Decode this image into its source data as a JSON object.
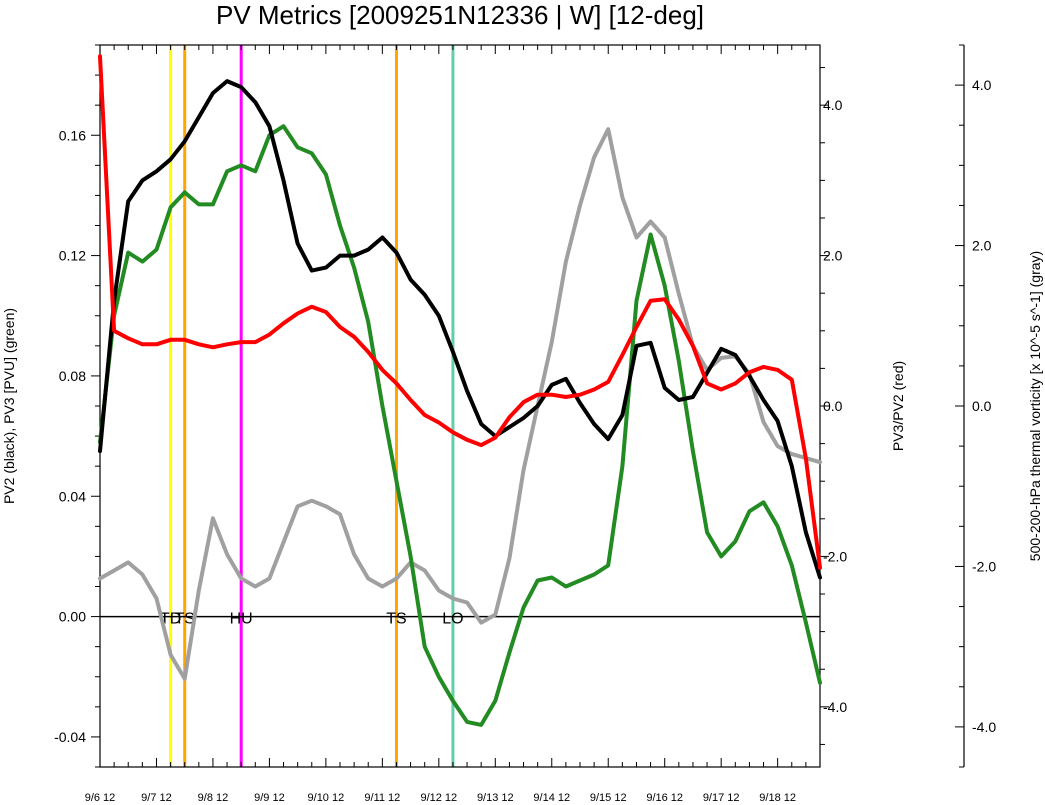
{
  "chart_data": {
    "type": "line",
    "title": "PV Metrics [2009251N12336 | W] [12-deg]",
    "y_left_label": "PV2 (black), PV3 [PVU] (green)",
    "y_mid_label": "PV3/PV2 (red)",
    "y_right_label": "500-200-hPa thermal vorticity [x 10^-5 s^-1] (gray)",
    "x_range": [
      0,
      12.75
    ],
    "x_tick_labels": [
      "9/6 12",
      "9/7 12",
      "9/8 12",
      "9/9 12",
      "9/10 12",
      "9/11 12",
      "9/12 12",
      "9/13 12",
      "9/14 12",
      "9/15 12",
      "9/16 12",
      "9/17 12",
      "9/18 12"
    ],
    "left_axis": {
      "range": [
        -0.05,
        0.19
      ],
      "ticks": [
        -0.04,
        0.0,
        0.04,
        0.08,
        0.12,
        0.16
      ],
      "tick_labels": [
        "-0.04",
        "0.00",
        "0.04",
        "0.08",
        "0.12",
        "0.16"
      ]
    },
    "mid_axis": {
      "range": [
        -4.8,
        4.8
      ],
      "ticks": [
        -4.0,
        -2.0,
        0.0,
        2.0,
        4.0
      ],
      "tick_labels": [
        "-4.0",
        "-2.0",
        "0.0",
        "2.0",
        "4.0"
      ]
    },
    "right_axis": {
      "range": [
        -4.5,
        4.5
      ],
      "ticks": [
        -4.0,
        -2.0,
        0.0,
        2.0,
        4.0
      ],
      "tick_labels": [
        "-4.0",
        "-2.0",
        "0.0",
        "2.0",
        "4.0"
      ]
    },
    "zero_line": 0.0,
    "stage_markers": [
      {
        "x": 1.25,
        "color": "#ffff00",
        "label": "TD"
      },
      {
        "x": 1.5,
        "color": "#ffa500",
        "label": "TS"
      },
      {
        "x": 2.5,
        "color": "#ff00ff",
        "label": "HU"
      },
      {
        "x": 5.25,
        "color": "#ffa500",
        "label": "TS"
      },
      {
        "x": 6.25,
        "color": "#66cdaa",
        "label": "LO"
      }
    ],
    "series": [
      {
        "axis": "right",
        "color": "#a0a0a0",
        "x": [
          0,
          0.25,
          0.5,
          0.75,
          1.0,
          1.25,
          1.5,
          1.75,
          2.0,
          2.25,
          2.5,
          2.75,
          3.0,
          3.25,
          3.5,
          3.75,
          4.0,
          4.25,
          4.5,
          4.75,
          5.0,
          5.25,
          5.5,
          5.75,
          6.0,
          6.25,
          6.5,
          6.75,
          7.0,
          7.25,
          7.5,
          7.75,
          8.0,
          8.25,
          8.5,
          8.75,
          9.0,
          9.25,
          9.5,
          9.75,
          10.0,
          10.25,
          10.5,
          10.75,
          11.0,
          11.25,
          11.5,
          11.75,
          12.0,
          12.25,
          12.5,
          12.75
        ],
        "values": [
          -2.15,
          -2.05,
          -1.95,
          -2.1,
          -2.4,
          -3.1,
          -3.4,
          -2.3,
          -1.4,
          -1.85,
          -2.15,
          -2.25,
          -2.15,
          -1.7,
          -1.25,
          -1.18,
          -1.25,
          -1.35,
          -1.85,
          -2.15,
          -2.25,
          -2.15,
          -1.95,
          -2.05,
          -2.3,
          -2.4,
          -2.45,
          -2.7,
          -2.6,
          -1.9,
          -0.8,
          0.0,
          0.8,
          1.8,
          2.5,
          3.1,
          3.45,
          2.6,
          2.1,
          2.3,
          2.1,
          1.4,
          0.75,
          0.45,
          0.6,
          0.62,
          0.4,
          -0.2,
          -0.5,
          -0.6,
          -0.65,
          -0.7
        ]
      },
      {
        "axis": "left",
        "color": "#228b22",
        "x": [
          0,
          0.25,
          0.5,
          0.75,
          1.0,
          1.25,
          1.5,
          1.75,
          2.0,
          2.25,
          2.5,
          2.75,
          3.0,
          3.25,
          3.5,
          3.75,
          4.0,
          4.25,
          4.5,
          4.75,
          5.0,
          5.25,
          5.5,
          5.75,
          6.0,
          6.25,
          6.5,
          6.75,
          7.0,
          7.25,
          7.5,
          7.75,
          8.0,
          8.25,
          8.5,
          8.75,
          9.0,
          9.25,
          9.5,
          9.75,
          10.0,
          10.25,
          10.5,
          10.75,
          11.0,
          11.25,
          11.5,
          11.75,
          12.0,
          12.25,
          12.5,
          12.75
        ],
        "values": [
          0.058,
          0.1,
          0.121,
          0.118,
          0.122,
          0.136,
          0.141,
          0.137,
          0.137,
          0.148,
          0.15,
          0.148,
          0.16,
          0.163,
          0.156,
          0.154,
          0.147,
          0.13,
          0.116,
          0.098,
          0.07,
          0.045,
          0.02,
          -0.01,
          -0.02,
          -0.028,
          -0.035,
          -0.036,
          -0.028,
          -0.012,
          0.003,
          0.012,
          0.013,
          0.01,
          0.012,
          0.014,
          0.017,
          0.05,
          0.105,
          0.127,
          0.11,
          0.085,
          0.055,
          0.028,
          0.02,
          0.025,
          0.035,
          0.038,
          0.03,
          0.017,
          -0.002,
          -0.022
        ]
      },
      {
        "axis": "left",
        "color": "#000000",
        "x": [
          0,
          0.25,
          0.5,
          0.75,
          1.0,
          1.25,
          1.5,
          1.75,
          2.0,
          2.25,
          2.5,
          2.75,
          3.0,
          3.25,
          3.5,
          3.75,
          4.0,
          4.25,
          4.5,
          4.75,
          5.0,
          5.25,
          5.5,
          5.75,
          6.0,
          6.25,
          6.5,
          6.75,
          7.0,
          7.25,
          7.5,
          7.75,
          8.0,
          8.25,
          8.5,
          8.75,
          9.0,
          9.25,
          9.5,
          9.75,
          10.0,
          10.25,
          10.5,
          10.75,
          11.0,
          11.25,
          11.5,
          11.75,
          12.0,
          12.25,
          12.5,
          12.75
        ],
        "values": [
          0.055,
          0.105,
          0.138,
          0.145,
          0.148,
          0.152,
          0.158,
          0.166,
          0.174,
          0.178,
          0.176,
          0.171,
          0.163,
          0.145,
          0.124,
          0.115,
          0.116,
          0.12,
          0.12,
          0.122,
          0.126,
          0.121,
          0.112,
          0.107,
          0.1,
          0.088,
          0.075,
          0.064,
          0.06,
          0.063,
          0.066,
          0.07,
          0.077,
          0.079,
          0.071,
          0.064,
          0.059,
          0.067,
          0.09,
          0.091,
          0.076,
          0.072,
          0.073,
          0.081,
          0.089,
          0.087,
          0.08,
          0.072,
          0.065,
          0.05,
          0.028,
          0.013
        ]
      },
      {
        "axis": "mid",
        "color": "#ff0000",
        "x": [
          0,
          0.25,
          0.5,
          0.75,
          1.0,
          1.25,
          1.5,
          1.75,
          2.0,
          2.25,
          2.5,
          2.75,
          3.0,
          3.25,
          3.5,
          3.75,
          4.0,
          4.25,
          4.5,
          4.75,
          5.0,
          5.25,
          5.5,
          5.75,
          6.0,
          6.25,
          6.5,
          6.75,
          7.0,
          7.25,
          7.5,
          7.75,
          8.0,
          8.25,
          8.5,
          8.75,
          9.0,
          9.25,
          9.5,
          9.75,
          10.0,
          10.25,
          10.5,
          10.75,
          11.0,
          11.25,
          11.5,
          11.75,
          12.0,
          12.25,
          12.5,
          12.75
        ],
        "values": [
          4.65,
          1.0,
          0.9,
          0.82,
          0.82,
          0.88,
          0.88,
          0.82,
          0.78,
          0.82,
          0.85,
          0.85,
          0.95,
          1.1,
          1.23,
          1.32,
          1.25,
          1.05,
          0.92,
          0.72,
          0.48,
          0.3,
          0.08,
          -0.12,
          -0.22,
          -0.35,
          -0.45,
          -0.52,
          -0.42,
          -0.15,
          0.05,
          0.15,
          0.15,
          0.12,
          0.15,
          0.22,
          0.32,
          0.68,
          1.05,
          1.4,
          1.42,
          1.15,
          0.8,
          0.3,
          0.22,
          0.3,
          0.45,
          0.52,
          0.48,
          0.35,
          -0.7,
          -2.15
        ]
      }
    ]
  }
}
